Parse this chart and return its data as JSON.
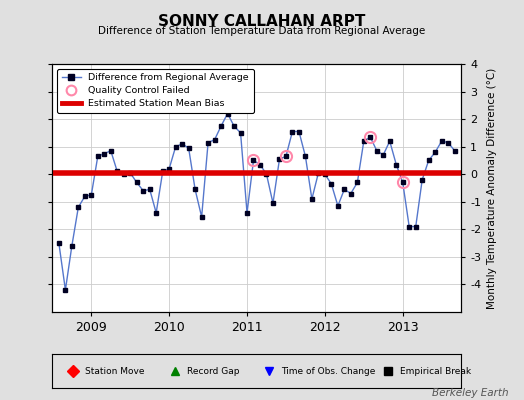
{
  "title": "SONNY CALLAHAN ARPT",
  "subtitle": "Difference of Station Temperature Data from Regional Average",
  "ylabel": "Monthly Temperature Anomaly Difference (°C)",
  "mean_bias": 0.05,
  "bias_color": "#dd0000",
  "line_color": "#5577cc",
  "marker_color": "#000022",
  "qc_failed_color": "#ff88aa",
  "ylim": [
    -5,
    4
  ],
  "yticks": [
    -4,
    -3,
    -2,
    -1,
    0,
    1,
    2,
    3,
    4
  ],
  "background_color": "#e0e0e0",
  "plot_bg_color": "#ffffff",
  "grid_color": "#cccccc",
  "watermark": "Berkeley Earth",
  "data": {
    "times": [
      2008.583,
      2008.667,
      2008.75,
      2008.833,
      2008.917,
      2009.0,
      2009.083,
      2009.167,
      2009.25,
      2009.333,
      2009.417,
      2009.5,
      2009.583,
      2009.667,
      2009.75,
      2009.833,
      2009.917,
      2010.0,
      2010.083,
      2010.167,
      2010.25,
      2010.333,
      2010.417,
      2010.5,
      2010.583,
      2010.667,
      2010.75,
      2010.833,
      2010.917,
      2011.0,
      2011.083,
      2011.167,
      2011.25,
      2011.333,
      2011.417,
      2011.5,
      2011.583,
      2011.667,
      2011.75,
      2011.833,
      2011.917,
      2012.0,
      2012.083,
      2012.167,
      2012.25,
      2012.333,
      2012.417,
      2012.5,
      2012.583,
      2012.667,
      2012.75,
      2012.833,
      2012.917,
      2013.0,
      2013.083,
      2013.167,
      2013.25,
      2013.333,
      2013.417,
      2013.5,
      2013.583,
      2013.667
    ],
    "values": [
      -2.5,
      -4.2,
      -2.6,
      -1.2,
      -0.8,
      -0.75,
      0.65,
      0.75,
      0.85,
      0.1,
      0.0,
      0.05,
      -0.3,
      -0.6,
      -0.55,
      -1.4,
      0.1,
      0.2,
      1.0,
      1.1,
      0.95,
      -0.55,
      -1.55,
      1.15,
      1.25,
      1.75,
      2.2,
      1.75,
      1.5,
      -1.4,
      0.5,
      0.35,
      0.0,
      -1.05,
      0.55,
      0.65,
      1.55,
      1.55,
      0.65,
      -0.9,
      0.05,
      0.0,
      -0.35,
      -1.15,
      -0.55,
      -0.7,
      -0.3,
      1.2,
      1.35,
      0.85,
      0.7,
      1.2,
      0.35,
      -0.3,
      -1.9,
      -1.9,
      -0.2,
      0.5,
      0.8,
      1.2,
      1.15,
      0.85
    ],
    "qc_failed_indices": [
      30,
      35,
      48,
      53
    ]
  },
  "xticks": [
    2009,
    2010,
    2011,
    2012,
    2013
  ],
  "xlim": [
    2008.5,
    2013.75
  ],
  "figsize": [
    5.24,
    4.0
  ],
  "dpi": 100
}
